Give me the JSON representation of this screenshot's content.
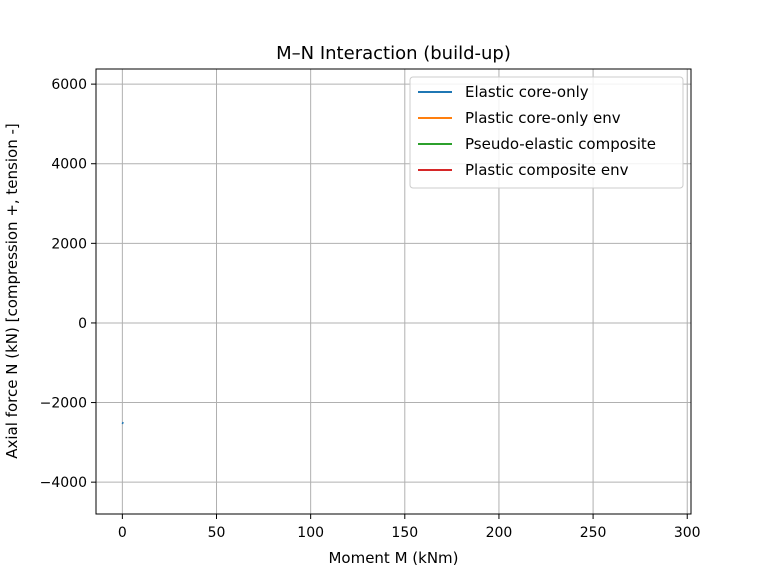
{
  "chart_data": {
    "type": "line",
    "title": "M–N Interaction (build-up)",
    "xlabel": "Moment M (kNm)",
    "ylabel": "Axial force N (kN)  [compression +, tension -]",
    "xlim": [
      -14,
      302
    ],
    "ylim": [
      -4800,
      6380
    ],
    "xticks": [
      0,
      50,
      100,
      150,
      200,
      250,
      300
    ],
    "yticks": [
      6000,
      4000,
      2000,
      0,
      -2000,
      -4000
    ],
    "xtick_labels": [
      "0",
      "50",
      "100",
      "150",
      "200",
      "250",
      "300"
    ],
    "ytick_labels": [
      "6000",
      "4000",
      "2000",
      "0",
      "−2000",
      "−4000"
    ],
    "grid": true,
    "legend_position": "upper-right",
    "series": [
      {
        "name": "Elastic core-only",
        "color": "#1f77b4",
        "x": [
          0,
          0.4
        ],
        "y": [
          -2540,
          -2490
        ]
      },
      {
        "name": "Plastic core-only env",
        "color": "#ff7f0e",
        "x": [],
        "y": []
      },
      {
        "name": "Pseudo-elastic composite",
        "color": "#2ca02c",
        "x": [],
        "y": []
      },
      {
        "name": "Plastic composite env",
        "color": "#d62728",
        "x": [],
        "y": []
      }
    ]
  }
}
